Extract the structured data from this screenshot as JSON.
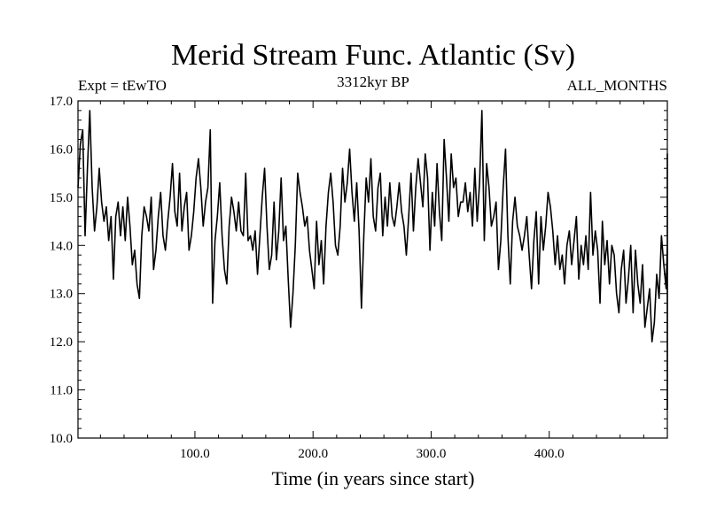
{
  "chart_data": {
    "type": "line",
    "title": "Merid Stream Func. Atlantic (Sv)",
    "subtitle_left": "Expt = tEwTO",
    "subtitle_center": "3312kyr BP",
    "subtitle_right": "ALL_MONTHS",
    "xlabel": "Time (in years since start)",
    "ylabel": "",
    "xlim": [
      1,
      500
    ],
    "ylim": [
      10.0,
      17.0
    ],
    "x_ticks": [
      100,
      200,
      300,
      400
    ],
    "x_tick_labels": [
      "100.0",
      "200.0",
      "300.0",
      "400.0"
    ],
    "y_ticks": [
      10,
      11,
      12,
      13,
      14,
      15,
      16,
      17
    ],
    "y_tick_labels": [
      "10.0",
      "11.0",
      "12.0",
      "13.0",
      "14.0",
      "15.0",
      "16.0",
      "17.0"
    ],
    "series": [
      {
        "name": "Merid Stream Func. Atlantic",
        "x_start": 1,
        "x_step": 2,
        "values": [
          15.2,
          16.1,
          16.4,
          14.2,
          15.6,
          16.8,
          15.2,
          14.3,
          14.8,
          15.6,
          14.9,
          14.5,
          14.8,
          14.1,
          14.6,
          13.3,
          14.6,
          14.9,
          14.2,
          14.8,
          14.1,
          15.0,
          14.4,
          13.6,
          13.9,
          13.2,
          12.9,
          14.2,
          14.8,
          14.6,
          14.3,
          15.0,
          13.5,
          13.9,
          14.6,
          15.1,
          14.2,
          13.9,
          14.5,
          15.0,
          15.7,
          14.7,
          14.4,
          15.5,
          14.3,
          14.8,
          15.1,
          13.9,
          14.2,
          14.7,
          15.4,
          15.8,
          15.2,
          14.4,
          14.9,
          15.2,
          16.4,
          12.8,
          14.1,
          14.6,
          15.3,
          14.2,
          13.5,
          13.2,
          14.4,
          15.0,
          14.7,
          14.3,
          14.9,
          14.3,
          14.2,
          15.5,
          14.1,
          14.2,
          13.9,
          14.3,
          13.4,
          14.2,
          15.0,
          15.6,
          14.4,
          13.5,
          13.8,
          14.9,
          13.7,
          14.3,
          15.4,
          14.1,
          14.4,
          13.3,
          12.3,
          13.0,
          14.0,
          15.5,
          15.1,
          14.8,
          14.4,
          14.6,
          13.9,
          13.5,
          13.1,
          14.5,
          13.6,
          14.1,
          13.2,
          14.4,
          15.1,
          15.5,
          14.9,
          14.0,
          13.8,
          14.4,
          15.6,
          14.9,
          15.3,
          16.0,
          15.1,
          14.5,
          15.3,
          14.3,
          12.7,
          14.2,
          15.4,
          14.9,
          15.8,
          14.6,
          14.3,
          15.2,
          15.5,
          14.2,
          15.0,
          14.4,
          15.3,
          14.6,
          14.4,
          14.8,
          15.3,
          14.7,
          14.4,
          13.8,
          14.6,
          15.5,
          14.3,
          15.2,
          15.8,
          15.3,
          14.8,
          15.9,
          15.4,
          13.9,
          15.1,
          14.4,
          15.7,
          14.7,
          14.1,
          16.2,
          15.4,
          14.5,
          15.9,
          15.2,
          15.4,
          14.6,
          14.9,
          14.9,
          15.3,
          14.7,
          15.1,
          14.4,
          15.6,
          14.5,
          15.3,
          16.8,
          14.1,
          15.7,
          15.2,
          14.4,
          14.6,
          14.9,
          13.5,
          14.1,
          15.2,
          16.0,
          14.2,
          13.2,
          14.5,
          15.0,
          14.4,
          14.2,
          13.9,
          14.2,
          14.6,
          13.8,
          13.1,
          14.1,
          14.7,
          13.2,
          14.6,
          13.9,
          14.4,
          15.1,
          14.8,
          14.3,
          13.6,
          14.2,
          13.5,
          13.8,
          13.2,
          14.0,
          14.3,
          13.6,
          14.1,
          14.6,
          13.3,
          14.0,
          13.6,
          14.2,
          13.5,
          15.1,
          13.8,
          14.3,
          13.9,
          12.8,
          14.5,
          13.6,
          14.1,
          13.2,
          14.0,
          13.8,
          13.0,
          12.6,
          13.5,
          13.9,
          12.8,
          13.3,
          14.0,
          12.6,
          13.9,
          13.2,
          12.8,
          13.6,
          12.3,
          12.7,
          13.1,
          12.0,
          12.4,
          13.4,
          12.9,
          14.2,
          13.6,
          13.1,
          14.0,
          12.8,
          13.5,
          14.2,
          12.6,
          12.1,
          13.2,
          13.8,
          13.3,
          12.7,
          12.9,
          12.0,
          13.3,
          12.6,
          13.4,
          13.9,
          12.5,
          13.6,
          14.0,
          13.1,
          13.6,
          13.3,
          14.1,
          13.0,
          12.5,
          12.0,
          12.8,
          13.5,
          12.2,
          12.6,
          13.7,
          13.1,
          14.0,
          12.8,
          13.6,
          13.3,
          14.1,
          13.4,
          12.9,
          13.6,
          14.3,
          12.7,
          13.8,
          14.4,
          13.1,
          13.7,
          12.8,
          13.4,
          14.2,
          12.4,
          14.1,
          14.6,
          15.1,
          14.2,
          13.5,
          12.8,
          13.8,
          14.3,
          13.4,
          14.0,
          14.9,
          15.3,
          13.8,
          14.4,
          13.0,
          14.7,
          13.6,
          13.2,
          13.9,
          14.5,
          13.8,
          13.0,
          12.5,
          13.4,
          14.0,
          13.6,
          13.1,
          12.7,
          14.2,
          13.8,
          14.5,
          14.2,
          13.6,
          14.0,
          13.3,
          13.8,
          12.9,
          13.5,
          14.1,
          13.7,
          13.2,
          14.0,
          12.6,
          11.8,
          11.5,
          12.2,
          13.0,
          13.6,
          14.1,
          12.9,
          13.5,
          13.1,
          14.0,
          12.7,
          13.3,
          13.8,
          14.2,
          13.0,
          12.4,
          13.1,
          13.7,
          12.9,
          13.5,
          12.7,
          13.8,
          13.2,
          13.7,
          12.3,
          11.6,
          12.5,
          13.4,
          11.3,
          12.8,
          12.1,
          13.6,
          11.4,
          12.3,
          11.9,
          12.6,
          11.5,
          12.4,
          13.1,
          12.1,
          13.5,
          12.6,
          13.3,
          11.7,
          12.2,
          12.8,
          13.2,
          11.0,
          12.7,
          12.4,
          13.2,
          12.8,
          12.3,
          13.0,
          12.6,
          13.5,
          14.0,
          13.2,
          14.6,
          13.1,
          13.7,
          14.3,
          12.8,
          13.5,
          13.9,
          13.2,
          14.1,
          13.6,
          13.0,
          14.4,
          15.1,
          12.5,
          13.8,
          14.2,
          13.6,
          14.4,
          14.6,
          13.2,
          14.1,
          14.8,
          14.0,
          13.5,
          12.7,
          13.4,
          12.9,
          12.1,
          11.6,
          12.8,
          13.3,
          12.6,
          13.7,
          14.5,
          14.0,
          13.6,
          14.8,
          13.9,
          13.3,
          14.0,
          14.4,
          15.0,
          14.2,
          13.1,
          14.5,
          15.9,
          13.8,
          13.2,
          14.2,
          13.6,
          12.6,
          12.0,
          13.1,
          12.4,
          13.4,
          12.8,
          12.2,
          13.0,
          11.8,
          12.5,
          12.9,
          13.6,
          12.1,
          13.3,
          12.7,
          13.5,
          13.9,
          12.6,
          13.1,
          12.8,
          13.7,
          14.2,
          13.3,
          12.6,
          12.2,
          11.2,
          10.8,
          12.3,
          13.5,
          12.6,
          13.1,
          11.4,
          12.9,
          12.2,
          10.6,
          11.9,
          12.6,
          12.1,
          13.4,
          12.8,
          11.7,
          12.4,
          12.9,
          13.5,
          11.4,
          12.8,
          13.3,
          12.6,
          13.6,
          12.2,
          13.8,
          12.9,
          12.5,
          13.8,
          12.9,
          13.4,
          13.8,
          15.1,
          14.6,
          15.3,
          12.9,
          12.8
        ]
      }
    ]
  }
}
